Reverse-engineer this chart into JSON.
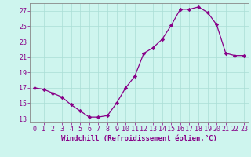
{
  "x": [
    0,
    1,
    2,
    3,
    4,
    5,
    6,
    7,
    8,
    9,
    10,
    11,
    12,
    13,
    14,
    15,
    16,
    17,
    18,
    19,
    20,
    21,
    22,
    23
  ],
  "y": [
    17.0,
    16.8,
    16.3,
    15.8,
    14.8,
    14.0,
    13.2,
    13.2,
    13.4,
    15.0,
    17.0,
    18.5,
    21.5,
    22.2,
    23.3,
    25.1,
    27.2,
    27.2,
    27.5,
    26.8,
    25.2,
    21.5,
    21.2,
    21.2
  ],
  "line_color": "#880088",
  "marker": "D",
  "marker_size": 2.2,
  "bg_color": "#cef5ee",
  "grid_color": "#aaddd5",
  "xlabel": "Windchill (Refroidissement éolien,°C)",
  "xlabel_fontsize": 6.5,
  "tick_fontsize": 6.0,
  "ylim": [
    12.5,
    28.0
  ],
  "yticks": [
    13,
    15,
    17,
    19,
    21,
    23,
    25,
    27
  ],
  "xlim": [
    -0.5,
    23.5
  ],
  "xticks": [
    0,
    1,
    2,
    3,
    4,
    5,
    6,
    7,
    8,
    9,
    10,
    11,
    12,
    13,
    14,
    15,
    16,
    17,
    18,
    19,
    20,
    21,
    22,
    23
  ],
  "spine_color": "#888888"
}
